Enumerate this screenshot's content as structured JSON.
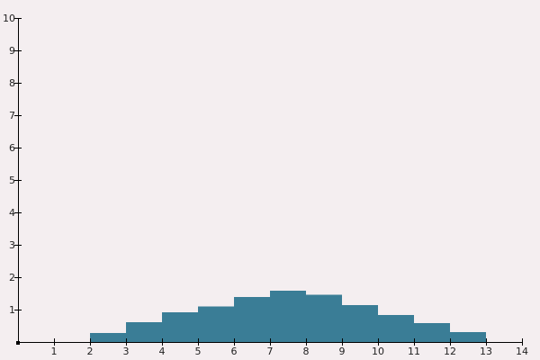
{
  "chart_data": {
    "type": "bar",
    "title": "",
    "xlabel": "",
    "ylabel": "",
    "xlim": [
      0,
      14
    ],
    "ylim": [
      0,
      10
    ],
    "x_ticks": [
      "1",
      "2",
      "3",
      "4",
      "5",
      "6",
      "7",
      "8",
      "9",
      "10",
      "11",
      "12",
      "13",
      "14"
    ],
    "y_ticks": [
      "1",
      "2",
      "3",
      "4",
      "5",
      "6",
      "7",
      "8",
      "9",
      "10"
    ],
    "bars": [
      {
        "x_start": 2,
        "x_end": 3,
        "value": 0.28
      },
      {
        "x_start": 3,
        "x_end": 4,
        "value": 0.61
      },
      {
        "x_start": 4,
        "x_end": 5,
        "value": 0.92
      },
      {
        "x_start": 5,
        "x_end": 6,
        "value": 1.1
      },
      {
        "x_start": 6,
        "x_end": 7,
        "value": 1.39
      },
      {
        "x_start": 7,
        "x_end": 8,
        "value": 1.58
      },
      {
        "x_start": 8,
        "x_end": 9,
        "value": 1.46
      },
      {
        "x_start": 9,
        "x_end": 10,
        "value": 1.14
      },
      {
        "x_start": 10,
        "x_end": 11,
        "value": 0.83
      },
      {
        "x_start": 11,
        "x_end": 12,
        "value": 0.58
      },
      {
        "x_start": 12,
        "x_end": 13,
        "value": 0.31
      }
    ],
    "bar_color": "#3a7d96",
    "background_color": "#f4eef0",
    "grid": false,
    "legend": "none"
  }
}
